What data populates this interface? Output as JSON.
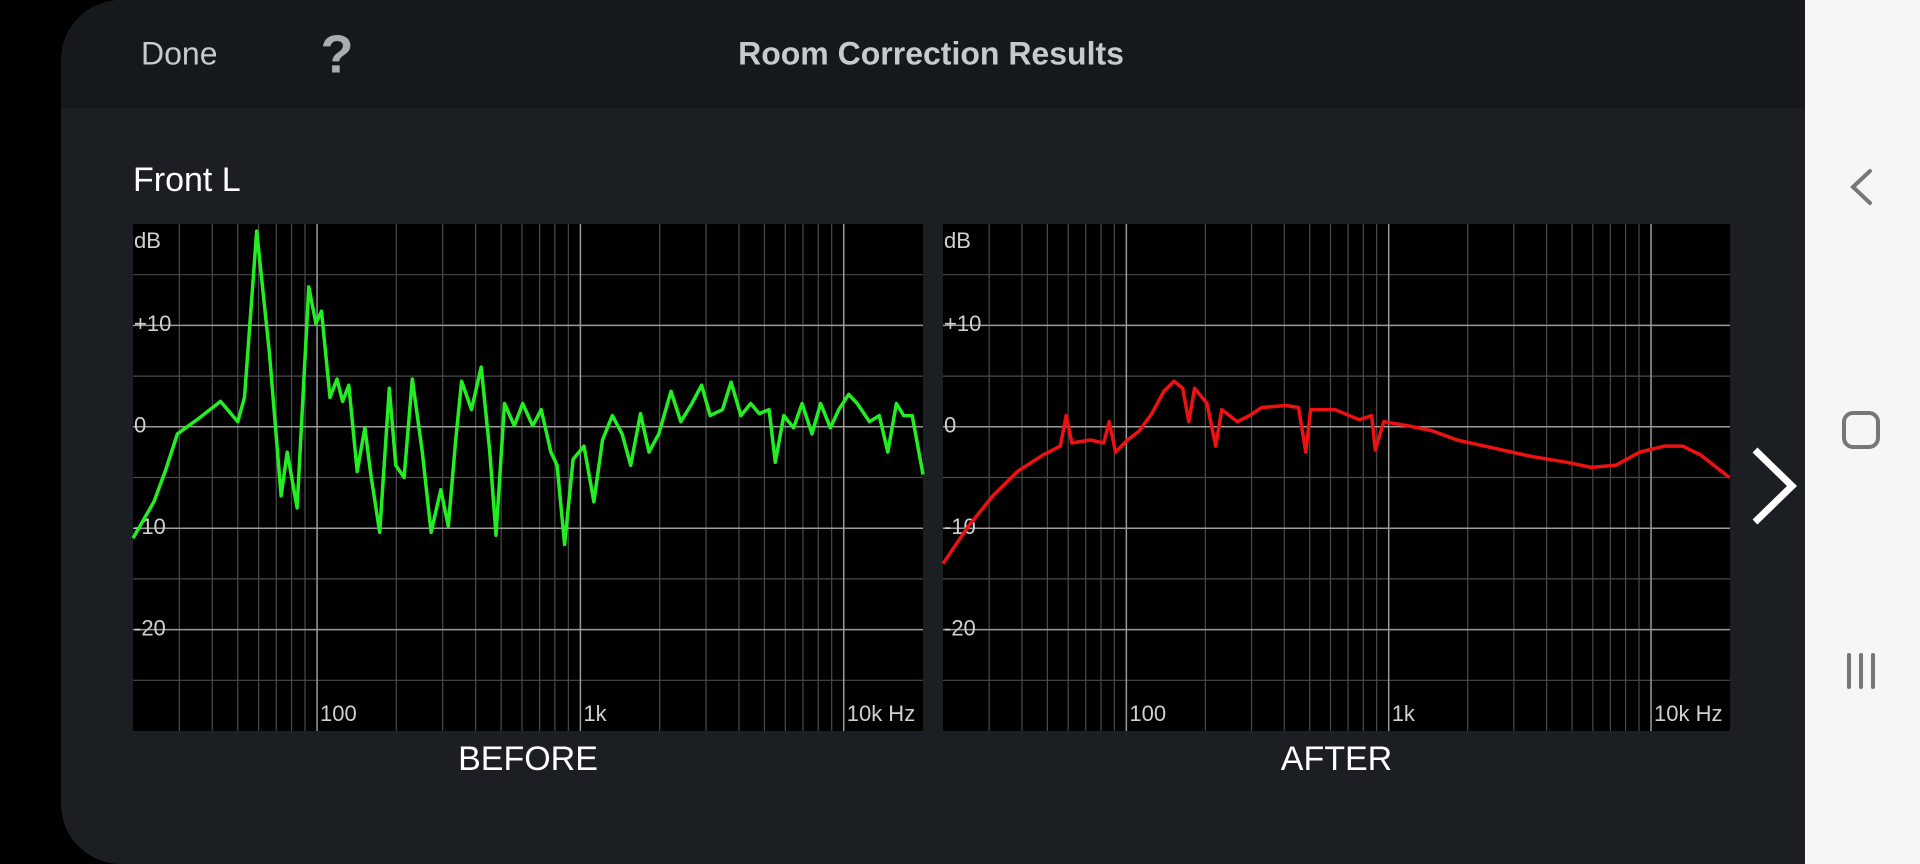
{
  "header": {
    "done": "Done",
    "help": "?",
    "title": "Room Correction Results"
  },
  "channel": "Front L",
  "chart_data": [
    {
      "type": "line",
      "title": "BEFORE",
      "y_label": "dB",
      "x_scale": "log",
      "x": [
        20,
        24,
        26.5,
        29.5,
        35,
        43,
        50,
        53,
        59,
        66,
        73,
        77,
        84,
        93,
        99,
        104,
        112,
        119,
        125,
        132,
        142,
        152,
        160,
        173,
        188,
        199,
        214,
        230,
        251,
        271,
        295,
        315,
        336,
        354,
        386,
        420,
        453,
        478,
        515,
        561,
        604,
        659,
        710,
        773,
        816,
        871,
        938,
        1032,
        1125,
        1213,
        1322,
        1440,
        1552,
        1692,
        1822,
        1985,
        2209,
        2406,
        2651,
        2886,
        3110,
        3465,
        3736,
        4069,
        4433,
        4779,
        5206,
        5495,
        5920,
        6450,
        6950,
        7575,
        8170,
        8900,
        9580,
        10440,
        11250,
        12530,
        13650,
        14700,
        15850,
        16900,
        18200,
        20000
      ],
      "series": [
        {
          "color": "#22ee22",
          "values": [
            -11,
            -7.4,
            -4.4,
            -0.7,
            0.7,
            2.5,
            0.5,
            2.9,
            19.3,
            7.2,
            -6.8,
            -2.5,
            -8,
            13.8,
            10.2,
            11.4,
            2.9,
            4.7,
            2.5,
            4.1,
            -4.4,
            -0.1,
            -4.7,
            -10.4,
            3.8,
            -3.8,
            -5,
            4.7,
            -2.5,
            -10.4,
            -6.2,
            -9.8,
            -1.3,
            4.5,
            1.7,
            5.9,
            -2.5,
            -10.7,
            2.3,
            0.1,
            2.3,
            0.1,
            1.7,
            -2.5,
            -3.8,
            -11.6,
            -3.2,
            -1.9,
            -7.4,
            -1.3,
            1.1,
            -0.7,
            -3.8,
            1.3,
            -2.5,
            -0.7,
            3.5,
            0.5,
            2.3,
            4.1,
            1.1,
            1.7,
            4.4,
            1.1,
            2.3,
            1.3,
            1.7,
            -3.5,
            1.1,
            -0.1,
            2.3,
            -0.7,
            2.3,
            -0.1,
            1.7,
            3.2,
            2.3,
            0.5,
            1.1,
            -2.5,
            2.3,
            1.1,
            1.1,
            -4.7
          ]
        }
      ],
      "xlim": [
        20,
        20000
      ],
      "ylim": [
        -30,
        20
      ],
      "xticks": [
        100,
        {
          "value": 1000,
          "label": "1k"
        },
        {
          "value": 10000,
          "label": "10k Hz"
        }
      ],
      "yticks": [
        {
          "value": 10,
          "label": "+10"
        },
        0,
        -10,
        -20
      ],
      "x_minor_ticks": [
        30,
        40,
        50,
        60,
        70,
        80,
        90,
        200,
        300,
        400,
        500,
        600,
        700,
        800,
        900,
        2000,
        3000,
        4000,
        5000,
        6000,
        7000,
        8000,
        9000
      ],
      "y_minor_ticks": [
        15,
        5,
        -5,
        -15,
        -25
      ],
      "grid": true
    },
    {
      "type": "line",
      "title": "AFTER",
      "y_label": "dB",
      "x_scale": "log",
      "x": [
        20,
        25,
        31,
        38.5,
        48,
        56,
        59,
        62,
        73,
        82,
        86,
        91,
        101,
        112,
        125,
        139,
        152,
        164,
        173,
        182,
        203,
        219,
        231,
        265,
        295,
        328,
        406,
        453,
        483,
        504,
        624,
        773,
        861,
        889,
        957,
        1186,
        1469,
        1822,
        2512,
        3465,
        4779,
        5920,
        7330,
        9080,
        11250,
        13200,
        15500,
        19900
      ],
      "series": [
        {
          "color": "#ee1111",
          "values": [
            -13.5,
            -9.8,
            -6.8,
            -4.4,
            -2.8,
            -1.9,
            1.1,
            -1.6,
            -1.3,
            -1.6,
            0.5,
            -2.5,
            -1.3,
            -0.4,
            1.3,
            3.5,
            4.5,
            3.8,
            0.5,
            3.8,
            2.3,
            -1.9,
            1.7,
            0.5,
            1.1,
            1.9,
            2.1,
            1.9,
            -2.5,
            1.7,
            1.7,
            0.7,
            1.1,
            -2.3,
            0.5,
            0.1,
            -0.4,
            -1.3,
            -2.1,
            -2.9,
            -3.5,
            -4,
            -3.8,
            -2.5,
            -1.9,
            -1.9,
            -2.8,
            -5
          ]
        }
      ],
      "xlim": [
        20,
        20000
      ],
      "ylim": [
        -30,
        20
      ],
      "xticks": [
        100,
        {
          "value": 1000,
          "label": "1k"
        },
        {
          "value": 10000,
          "label": "10k Hz"
        }
      ],
      "yticks": [
        {
          "value": 10,
          "label": "+10"
        },
        0,
        -10,
        -20
      ],
      "x_minor_ticks": [
        30,
        40,
        50,
        60,
        70,
        80,
        90,
        200,
        300,
        400,
        500,
        600,
        700,
        800,
        900,
        2000,
        3000,
        4000,
        5000,
        6000,
        7000,
        8000,
        9000
      ],
      "y_minor_ticks": [
        15,
        5,
        -5,
        -15,
        -25
      ],
      "grid": true
    }
  ]
}
